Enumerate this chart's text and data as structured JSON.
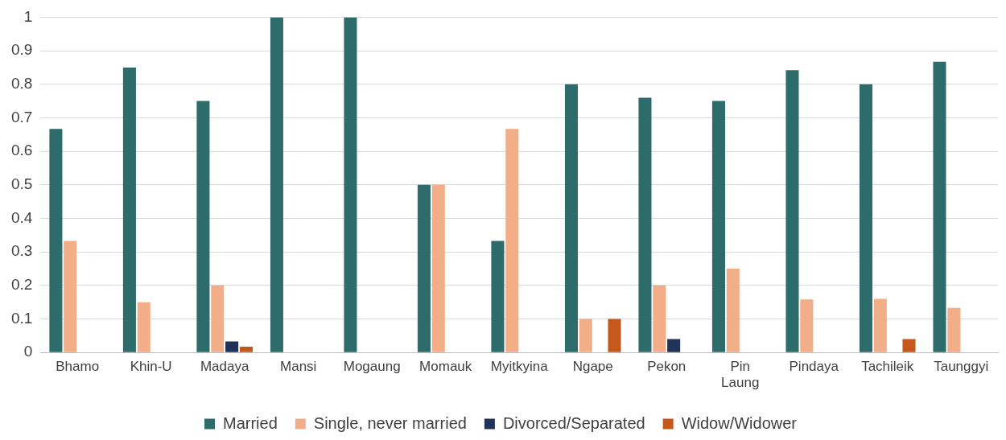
{
  "chart_data": {
    "type": "bar",
    "categories": [
      "Bhamo",
      "Khin-U",
      "Madaya",
      "Mansi",
      "Mogaung",
      "Momauk",
      "Myitkyina",
      "Ngape",
      "Pekon",
      "Pin Laung",
      "Pindaya",
      "Tachileik",
      "Taunggyi"
    ],
    "series": [
      {
        "name": "Married",
        "color": "#2e6b6b",
        "values": [
          0.667,
          0.85,
          0.75,
          1,
          1,
          0.5,
          0.333,
          0.8,
          0.76,
          0.75,
          0.842,
          0.8,
          0.867
        ]
      },
      {
        "name": "Single, never married",
        "color": "#f2ae88",
        "values": [
          0.333,
          0.15,
          0.2,
          0,
          0,
          0.5,
          0.667,
          0.1,
          0.2,
          0.25,
          0.158,
          0.16,
          0.133
        ]
      },
      {
        "name": "Divorced/Separated",
        "color": "#1f3458",
        "values": [
          0,
          0,
          0.033,
          0,
          0,
          0,
          0,
          0,
          0.04,
          0,
          0,
          0,
          0
        ]
      },
      {
        "name": "Widow/Widower",
        "color": "#c5581c",
        "values": [
          0,
          0,
          0.017,
          0,
          0,
          0,
          0,
          0.1,
          0,
          0,
          0,
          0.04,
          0
        ]
      }
    ],
    "ylim": [
      0,
      1
    ],
    "yticks": [
      0,
      0.1,
      0.2,
      0.3,
      0.4,
      0.5,
      0.6,
      0.7,
      0.8,
      0.9,
      1
    ],
    "grid": "y",
    "legend": "bottom"
  }
}
